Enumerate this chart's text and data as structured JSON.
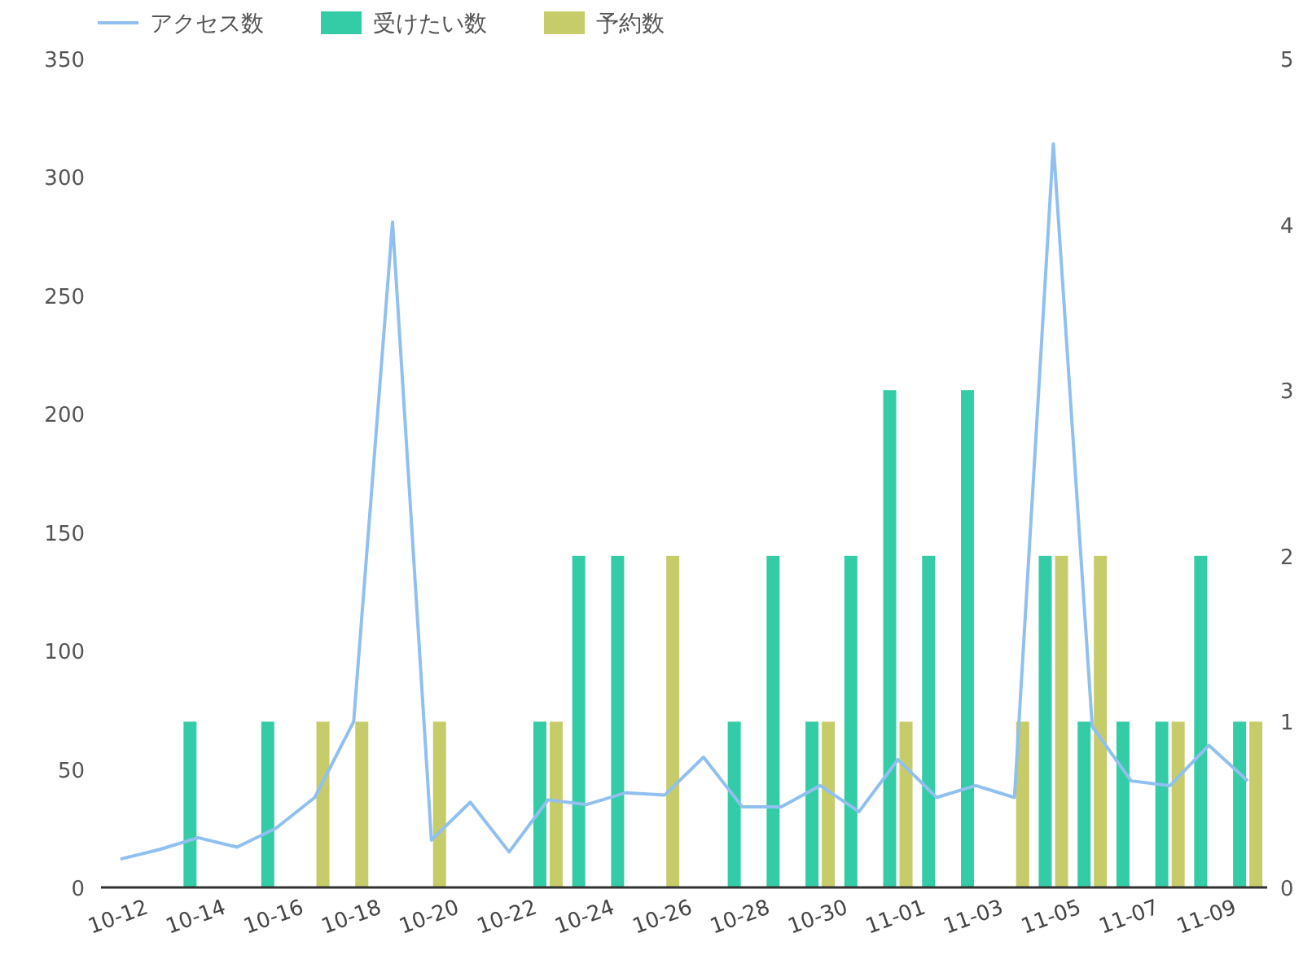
{
  "chart_data": {
    "type": "bar",
    "categories": [
      "10-12",
      null,
      "10-14",
      null,
      "10-16",
      null,
      "10-18",
      null,
      "10-20",
      null,
      "10-22",
      null,
      "10-24",
      null,
      "10-26",
      null,
      "10-28",
      null,
      "10-30",
      null,
      "11-01",
      null,
      "11-03",
      null,
      "11-05",
      null,
      "11-07",
      null,
      "11-09",
      null
    ],
    "series": [
      {
        "name": "アクセス数",
        "type": "line",
        "color": "#90c0ef",
        "values": [
          12,
          16,
          21,
          17,
          25,
          38,
          70,
          281,
          20,
          36,
          15,
          37,
          35,
          40,
          39,
          55,
          34,
          34,
          43,
          32,
          54,
          38,
          43,
          38,
          314,
          68,
          45,
          43,
          60,
          45
        ]
      },
      {
        "name": "受けたい数",
        "axis": "y2",
        "color": "#33cca6",
        "values": [
          null,
          null,
          1,
          null,
          1,
          null,
          null,
          null,
          null,
          null,
          null,
          1,
          2,
          2,
          null,
          null,
          1,
          2,
          1,
          2,
          3,
          2,
          3,
          null,
          2,
          1,
          1,
          1,
          2,
          1
        ]
      },
      {
        "name": "予約数",
        "axis": "y2",
        "color": "#c6cc6a",
        "values": [
          null,
          null,
          null,
          null,
          null,
          1,
          1,
          null,
          1,
          null,
          null,
          1,
          null,
          null,
          2,
          null,
          null,
          null,
          1,
          null,
          1,
          null,
          null,
          1,
          2,
          2,
          null,
          1,
          null,
          1
        ]
      }
    ],
    "ylim": [
      0,
      350
    ],
    "yticks": [
      0,
      50,
      100,
      150,
      200,
      250,
      300,
      350
    ],
    "y2lim": [
      0,
      5
    ],
    "y2ticks": [
      0,
      1,
      2,
      3,
      4,
      5
    ],
    "legend": "top",
    "grid": false
  }
}
